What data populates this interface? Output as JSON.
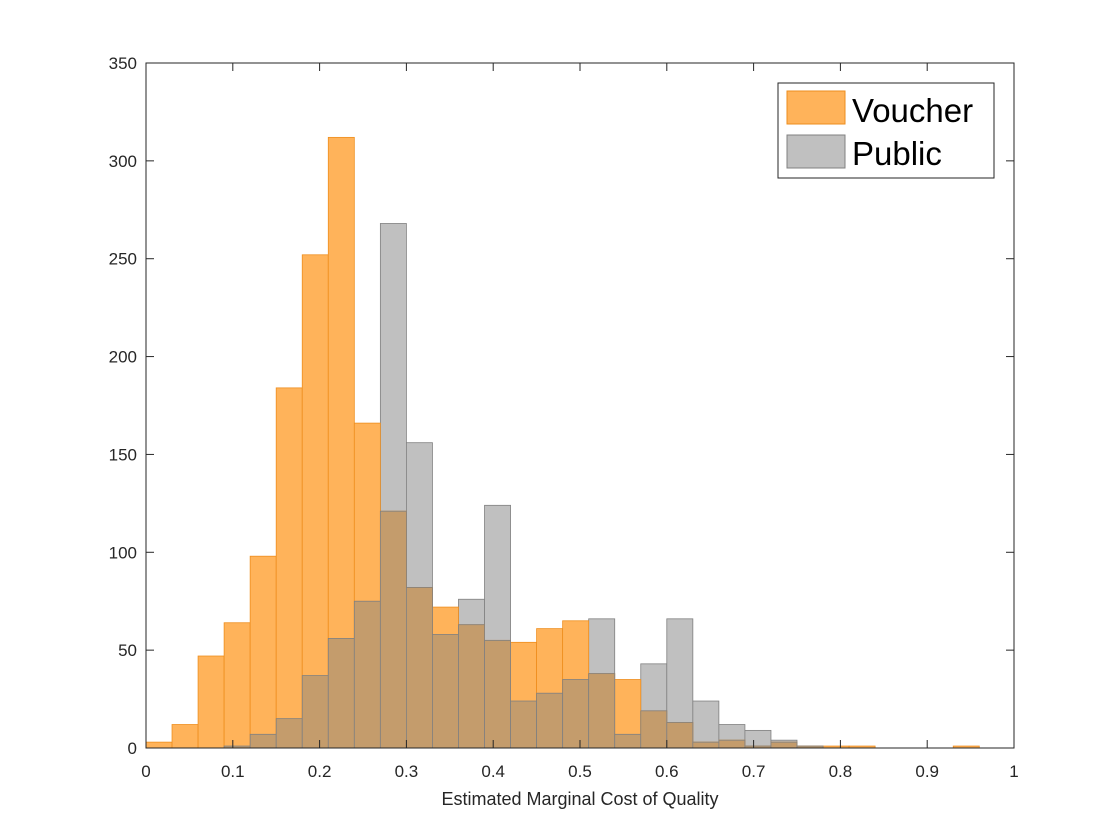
{
  "chart_data": {
    "type": "bar",
    "subtype": "overlapping-histogram",
    "title": "",
    "xlabel": "Estimated Marginal Cost of Quality",
    "ylabel": "",
    "xlim": [
      0,
      1
    ],
    "ylim": [
      0,
      350
    ],
    "xticks": [
      "0",
      "0.1",
      "0.2",
      "0.3",
      "0.4",
      "0.5",
      "0.6",
      "0.7",
      "0.8",
      "0.9",
      "1"
    ],
    "yticks": [
      "0",
      "50",
      "100",
      "150",
      "200",
      "250",
      "300",
      "350"
    ],
    "grid": false,
    "legend_position": "top-right",
    "colors": {
      "voucher_fill": "#ffb35a",
      "voucher_edge": "#ee8e1e",
      "public_fill": "#c0c0c0",
      "public_edge": "#808080",
      "overlap_fill": "#c49c6c"
    },
    "bin_edges": [
      0,
      0.03,
      0.06,
      0.09,
      0.12,
      0.15,
      0.18,
      0.21,
      0.24,
      0.27,
      0.3,
      0.33,
      0.36,
      0.39,
      0.42,
      0.45,
      0.48,
      0.51,
      0.54,
      0.57,
      0.6,
      0.63,
      0.66,
      0.69,
      0.72,
      0.75,
      0.78,
      0.81,
      0.84,
      0.87,
      0.9,
      0.93,
      0.96
    ],
    "series": [
      {
        "name": "Voucher",
        "values": [
          3,
          12,
          47,
          64,
          98,
          184,
          252,
          312,
          166,
          121,
          82,
          72,
          63,
          55,
          54,
          61,
          65,
          38,
          35,
          19,
          13,
          3,
          4,
          1,
          3,
          1,
          1,
          1,
          0,
          0,
          0,
          1
        ]
      },
      {
        "name": "Public",
        "values": [
          0,
          0,
          0,
          1,
          7,
          15,
          37,
          56,
          75,
          268,
          156,
          58,
          76,
          124,
          24,
          28,
          35,
          66,
          7,
          43,
          66,
          24,
          12,
          9,
          4,
          1,
          0,
          0,
          0,
          0,
          0,
          0
        ]
      }
    ]
  }
}
